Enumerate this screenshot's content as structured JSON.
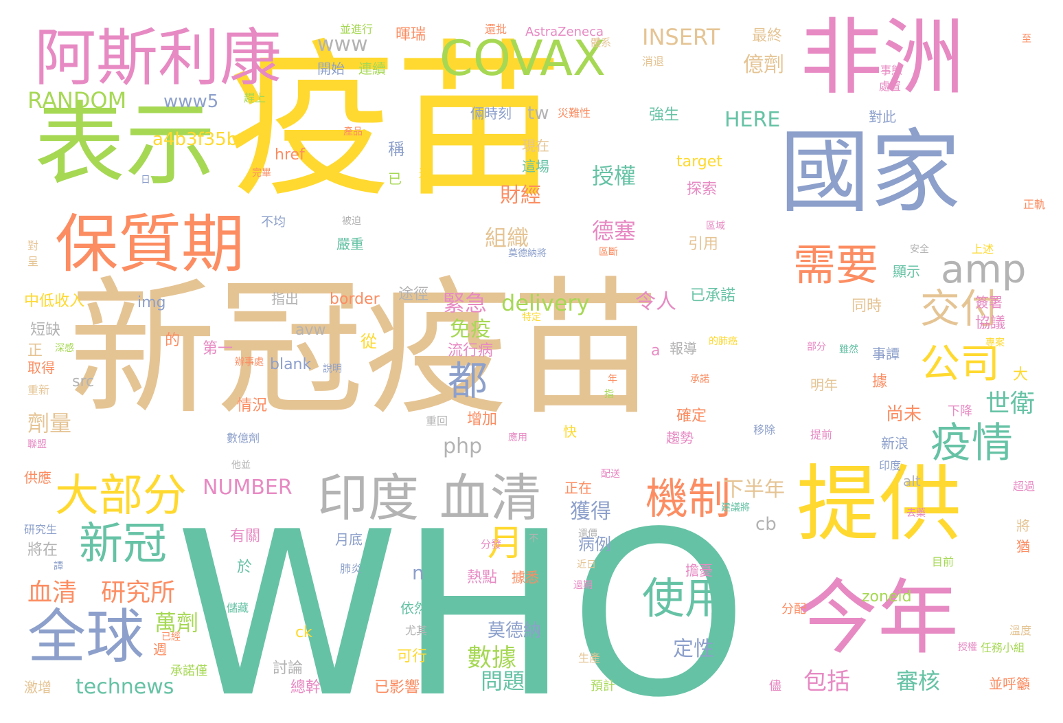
{
  "palette": {
    "green": "#66c2a5",
    "yellow": "#ffd92f",
    "tan": "#e5c494",
    "lime": "#a6d854",
    "pink": "#e78ac3",
    "orange": "#fc8d62",
    "blue": "#8da0cb",
    "gray": "#b3b3b3"
  },
  "words": [
    "疫苗",
    "新冠疫苗",
    "WHO",
    "表示",
    "國家",
    "非洲",
    "提供",
    "今年",
    "阿斯利康",
    "保質期",
    "COVAX",
    "全球",
    "印度",
    "血清",
    "機制",
    "使用",
    "大部分",
    "需要",
    "交付",
    "公司",
    "疫情",
    "新冠",
    "amp",
    "都",
    "月",
    "血清",
    "研究所",
    "technews",
    "數據",
    "包括",
    "審核",
    "世衛",
    "INSERT",
    "www",
    "RANDOM",
    "www5",
    "a4b3f35b",
    "delivery",
    "緊急",
    "免疫",
    "HERE",
    "授權",
    "德塞",
    "組織",
    "財經",
    "億劑",
    "tw",
    "NUMBER",
    "下半年",
    "獲得",
    "令人",
    "已承諾",
    "劑量",
    "情況",
    "萬劑",
    "問題",
    "定性",
    "尚未",
    "莫德納",
    "php",
    "target",
    "border",
    "img",
    "blank",
    "avw",
    "src",
    "cb",
    "alt",
    "ck",
    "zoneid",
    "href",
    "a",
    "n",
    "AstraZeneca",
    "最終",
    "暉瑞",
    "並進行",
    "開始",
    "連續",
    "還批",
    "體系",
    "現在",
    "這場",
    "稱",
    "已",
    "還",
    "完畢",
    "不均",
    "被迫",
    "嚴重",
    "指出",
    "途徑",
    "短缺",
    "正",
    "取得",
    "重新",
    "中低收入",
    "第一",
    "報導",
    "從",
    "流行病",
    "有關",
    "於",
    "病例",
    "依然",
    "熱點",
    "據悉",
    "擔憂",
    "可行",
    "已影響",
    "總幹",
    "討論",
    "激增",
    "承諾僅",
    "週",
    "尤其",
    "預計",
    "生產",
    "儘",
    "任務小組",
    "並呼籲",
    "溫度",
    "授權",
    "分配",
    "目前",
    "肺炎",
    "月底",
    "將在",
    "研究生",
    "聯盟",
    "供應",
    "辦事處",
    "確定",
    "趨勢",
    "快",
    "移除",
    "提前",
    "數億劑",
    "下降",
    "新浪",
    "印度",
    "超過",
    "將",
    "對此",
    "事態",
    "處置",
    "同時",
    "簽署",
    "協議",
    "事譚",
    "雖然",
    "大",
    "據",
    "明年",
    "已經",
    "重回",
    "增加",
    "應用",
    "他並",
    "配送",
    "正在",
    "建議將",
    "還價",
    "近日",
    "過期",
    "儲藏",
    "引用",
    "區域",
    "探索",
    "區斷",
    "安全",
    "上述",
    "顯示",
    "正軌",
    "災難性",
    "倆時刻",
    "強生",
    "產品",
    "趕上",
    "消退",
    "對",
    "呈",
    "深感",
    "說明",
    "的",
    "特定",
    "部分",
    "的肺癌",
    "專案",
    "年",
    "指",
    "承諾",
    "去藥",
    "日",
    "分發",
    "至",
    "不",
    "譚",
    "猶",
    "莫德納將"
  ]
}
